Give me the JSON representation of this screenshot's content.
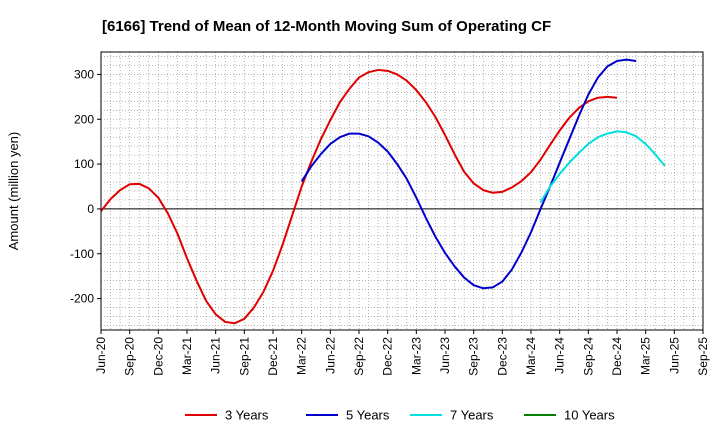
{
  "chart_data": {
    "type": "line",
    "title": "[6166]  Trend of Mean of 12-Month Moving Sum of Operating CF",
    "xlabel": "",
    "ylabel": "Amount (million yen)",
    "ylim": [
      -270,
      350
    ],
    "yticks": [
      -200,
      -100,
      0,
      100,
      200,
      300
    ],
    "x_tick_labels": [
      "Jun-20",
      "Sep-20",
      "Dec-20",
      "Mar-21",
      "Jun-21",
      "Sep-21",
      "Dec-21",
      "Mar-22",
      "Jun-22",
      "Sep-22",
      "Dec-22",
      "Mar-23",
      "Jun-23",
      "Sep-23",
      "Dec-23",
      "Mar-24",
      "Jun-24",
      "Sep-24",
      "Dec-24",
      "Mar-25",
      "Jun-25",
      "Sep-25"
    ],
    "x_start": "Jun-20",
    "grid": true,
    "legend_position": "bottom",
    "series": [
      {
        "name": "3 Years",
        "color": "#e00000",
        "start_index": 0,
        "values": [
          -5,
          22,
          42,
          55,
          56,
          46,
          25,
          -10,
          -55,
          -110,
          -160,
          -205,
          -235,
          -252,
          -255,
          -245,
          -220,
          -185,
          -138,
          -80,
          -15,
          50,
          105,
          155,
          198,
          238,
          268,
          293,
          305,
          310,
          308,
          300,
          286,
          265,
          238,
          205,
          165,
          122,
          83,
          57,
          42,
          36,
          38,
          48,
          62,
          82,
          110,
          143,
          175,
          203,
          225,
          240,
          248,
          250,
          248
        ]
      },
      {
        "name": "5 Years",
        "color": "#0000cc",
        "start_index": 21,
        "values": [
          61,
          95,
          122,
          145,
          160,
          168,
          168,
          162,
          148,
          128,
          100,
          67,
          25,
          -20,
          -62,
          -98,
          -128,
          -153,
          -170,
          -177,
          -175,
          -162,
          -135,
          -97,
          -52,
          0,
          50,
          103,
          155,
          207,
          255,
          293,
          318,
          330,
          333,
          330
        ]
      },
      {
        "name": "7 Years",
        "color": "#00e0e0",
        "start_index": 46,
        "values": [
          15,
          50,
          78,
          103,
          125,
          145,
          160,
          168,
          173,
          171,
          162,
          145,
          122,
          96
        ]
      },
      {
        "name": "10 Years",
        "color": "#008000",
        "start_index": 0,
        "values": []
      }
    ]
  }
}
